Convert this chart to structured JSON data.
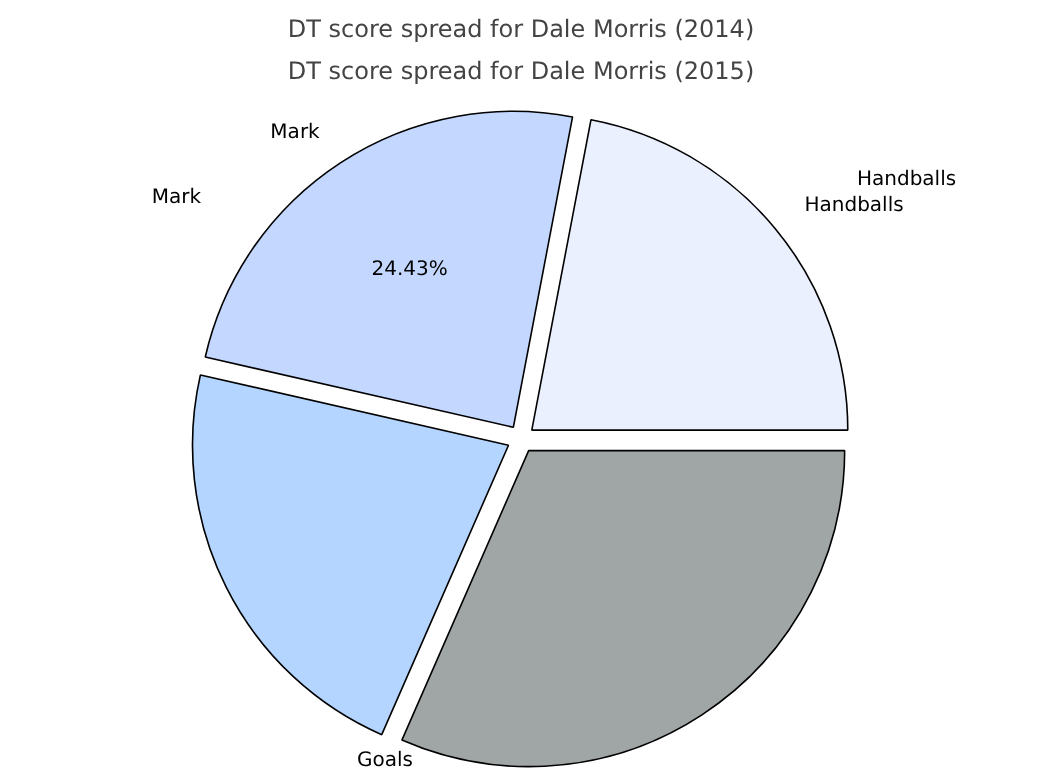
{
  "chart_data": {
    "type": "pie",
    "title": "DT score spread for Dale Morris (2014)",
    "subtitle": "DT score spread for Dale Morris (2015)",
    "categories": [
      "Handballs",
      "Mark",
      null,
      null
    ],
    "values": [
      22,
      24.43,
      22,
      31.57
    ],
    "colors": [
      "#ebf0ff",
      "#c4d7ff",
      "#b4d5ff",
      "#a0a5a5"
    ],
    "value_labels": [
      null,
      "24.43%",
      null,
      null
    ],
    "annotations": [
      "Mark",
      "Handballs",
      "Goals"
    ]
  }
}
